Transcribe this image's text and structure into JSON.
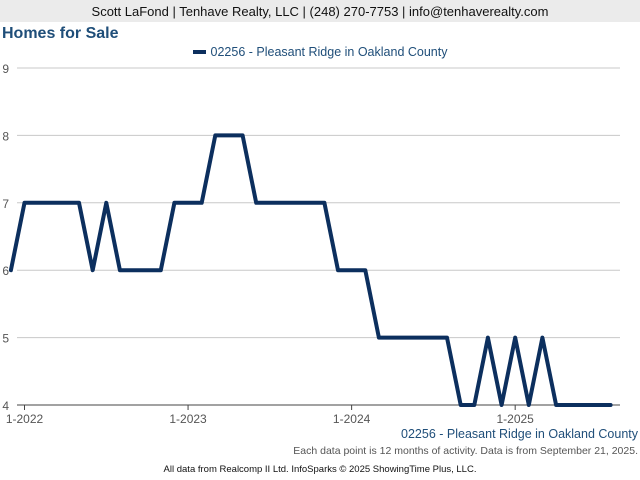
{
  "header": {
    "contact": "Scott LaFond | Tenhave Realty, LLC | (248) 270-7753 | info@tenhaverealty.com"
  },
  "chart_data": {
    "type": "line",
    "title": "Homes for Sale",
    "xlabel": "",
    "ylabel": "",
    "ylim": [
      4,
      9
    ],
    "yticks": [
      4,
      5,
      6,
      7,
      8,
      9
    ],
    "xtick_labels": [
      "1-2022",
      "1-2023",
      "1-2024",
      "1-2025"
    ],
    "grid": true,
    "legend_position": "top-center",
    "series": [
      {
        "name": "02256 - Pleasant Ridge in Oakland County",
        "color": "#0c2f5e",
        "x": [
          "2021-12",
          "2022-01",
          "2022-02",
          "2022-03",
          "2022-04",
          "2022-05",
          "2022-06",
          "2022-07",
          "2022-08",
          "2022-09",
          "2022-10",
          "2022-11",
          "2022-12",
          "2023-01",
          "2023-02",
          "2023-03",
          "2023-04",
          "2023-05",
          "2023-06",
          "2023-07",
          "2023-08",
          "2023-09",
          "2023-10",
          "2023-11",
          "2023-12",
          "2024-01",
          "2024-02",
          "2024-03",
          "2024-04",
          "2024-05",
          "2024-06",
          "2024-07",
          "2024-08",
          "2024-09",
          "2024-10",
          "2024-11",
          "2024-12",
          "2025-01",
          "2025-02",
          "2025-03",
          "2025-04",
          "2025-05",
          "2025-06",
          "2025-07",
          "2025-08"
        ],
        "values": [
          6,
          7,
          7,
          7,
          7,
          7,
          6,
          7,
          6,
          6,
          6,
          6,
          7,
          7,
          7,
          8,
          8,
          8,
          7,
          7,
          7,
          7,
          7,
          7,
          6,
          6,
          6,
          5,
          5,
          5,
          5,
          5,
          5,
          4,
          4,
          5,
          4,
          5,
          4,
          5,
          4,
          4,
          4,
          4,
          4
        ]
      }
    ]
  },
  "caption": "02256 - Pleasant Ridge in Oakland County",
  "note": "Each data point is 12 months of activity. Data is from September 21, 2025.",
  "footer": "All data from Realcomp II Ltd. InfoSparks © 2025 ShowingTime Plus, LLC."
}
